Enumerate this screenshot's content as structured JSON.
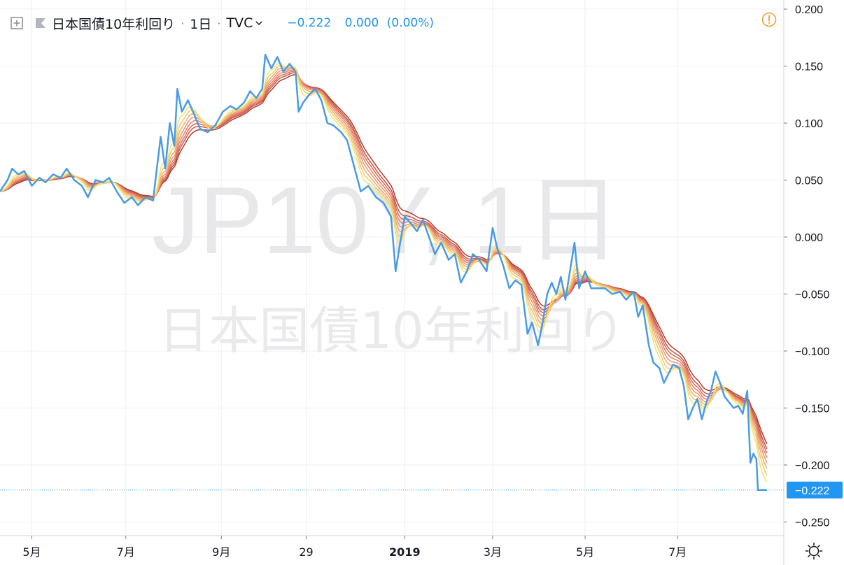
{
  "legend": {
    "title": "日本国債10年利回り",
    "interval": "1日",
    "exchange": "TVC",
    "last": "−0.222",
    "change": "0.000",
    "change_pct": "(0.00%)"
  },
  "watermark": {
    "symbol": "JP10Y, 1日",
    "name": "日本国債10年利回り"
  },
  "colors": {
    "price_line": "#4a9be3",
    "price_label_bg": "#2196f3",
    "ribbon": [
      "#f3e36a",
      "#f2c96c",
      "#efad6e",
      "#ec9670",
      "#e57f69",
      "#da6a5d",
      "#c95548",
      "#ad3f30"
    ]
  },
  "chart_data": {
    "type": "line",
    "title": "日本国債10年利回り",
    "subtitle": "1日 · TVC",
    "ylim": [
      -0.262,
      0.208
    ],
    "y_ticks": [
      0.2,
      0.15,
      0.1,
      0.05,
      0.0,
      -0.05,
      -0.1,
      -0.15,
      -0.2,
      -0.25
    ],
    "y_tick_labels": [
      "0.200",
      "0.150",
      "0.100",
      "0.050",
      "0.000",
      "−0.050",
      "−0.100",
      "−0.150",
      "−0.200",
      "−0.250"
    ],
    "x_ticks": [
      {
        "label": "5月",
        "date": "2018-05-01"
      },
      {
        "label": "7月",
        "date": "2018-07-02"
      },
      {
        "label": "9月",
        "date": "2018-09-03"
      },
      {
        "label": "29",
        "date": "2018-10-29"
      },
      {
        "label": "2019",
        "date": "2019-01-02"
      },
      {
        "label": "3月",
        "date": "2019-03-01"
      },
      {
        "label": "5月",
        "date": "2019-05-01"
      },
      {
        "label": "7月",
        "date": "2019-07-01"
      }
    ],
    "x_range": [
      "2018-04-10",
      "2019-08-29"
    ],
    "grid": true,
    "last_value_label": "−0.222",
    "last_value": -0.222,
    "series": [
      {
        "type": "line",
        "points": [
          [
            "2018-04-10",
            0.04
          ],
          [
            "2018-04-15",
            0.05
          ],
          [
            "2018-04-18",
            0.06
          ],
          [
            "2018-04-22",
            0.055
          ],
          [
            "2018-04-26",
            0.058
          ],
          [
            "2018-05-01",
            0.045
          ],
          [
            "2018-05-06",
            0.052
          ],
          [
            "2018-05-10",
            0.048
          ],
          [
            "2018-05-15",
            0.055
          ],
          [
            "2018-05-20",
            0.052
          ],
          [
            "2018-05-24",
            0.06
          ],
          [
            "2018-05-29",
            0.05
          ],
          [
            "2018-06-03",
            0.045
          ],
          [
            "2018-06-07",
            0.035
          ],
          [
            "2018-06-12",
            0.05
          ],
          [
            "2018-06-17",
            0.048
          ],
          [
            "2018-06-21",
            0.052
          ],
          [
            "2018-06-26",
            0.04
          ],
          [
            "2018-07-01",
            0.03
          ],
          [
            "2018-07-06",
            0.035
          ],
          [
            "2018-07-10",
            0.028
          ],
          [
            "2018-07-15",
            0.035
          ],
          [
            "2018-07-20",
            0.032
          ],
          [
            "2018-07-22",
            0.055
          ],
          [
            "2018-07-25",
            0.088
          ],
          [
            "2018-07-28",
            0.06
          ],
          [
            "2018-07-31",
            0.1
          ],
          [
            "2018-08-03",
            0.08
          ],
          [
            "2018-08-05",
            0.13
          ],
          [
            "2018-08-08",
            0.11
          ],
          [
            "2018-08-12",
            0.12
          ],
          [
            "2018-08-16",
            0.108
          ],
          [
            "2018-08-20",
            0.095
          ],
          [
            "2018-08-25",
            0.092
          ],
          [
            "2018-08-30",
            0.098
          ],
          [
            "2018-09-04",
            0.11
          ],
          [
            "2018-09-09",
            0.115
          ],
          [
            "2018-09-13",
            0.112
          ],
          [
            "2018-09-18",
            0.118
          ],
          [
            "2018-09-22",
            0.128
          ],
          [
            "2018-09-26",
            0.122
          ],
          [
            "2018-09-30",
            0.13
          ],
          [
            "2018-10-02",
            0.16
          ],
          [
            "2018-10-06",
            0.148
          ],
          [
            "2018-10-10",
            0.158
          ],
          [
            "2018-10-14",
            0.145
          ],
          [
            "2018-10-18",
            0.152
          ],
          [
            "2018-10-22",
            0.145
          ],
          [
            "2018-10-24",
            0.11
          ],
          [
            "2018-10-27",
            0.118
          ],
          [
            "2018-10-31",
            0.125
          ],
          [
            "2018-11-04",
            0.13
          ],
          [
            "2018-11-08",
            0.12
          ],
          [
            "2018-11-12",
            0.1
          ],
          [
            "2018-11-16",
            0.098
          ],
          [
            "2018-11-21",
            0.092
          ],
          [
            "2018-11-25",
            0.085
          ],
          [
            "2018-11-30",
            0.06
          ],
          [
            "2018-12-04",
            0.04
          ],
          [
            "2018-12-09",
            0.045
          ],
          [
            "2018-12-14",
            0.035
          ],
          [
            "2018-12-19",
            0.03
          ],
          [
            "2018-12-24",
            0.018
          ],
          [
            "2018-12-27",
            -0.03
          ],
          [
            "2018-12-30",
            -0.005
          ],
          [
            "2019-01-02",
            0.018
          ],
          [
            "2019-01-06",
            0.012
          ],
          [
            "2019-01-10",
            0.005
          ],
          [
            "2019-01-14",
            0.015
          ],
          [
            "2019-01-18",
            0.0
          ],
          [
            "2019-01-22",
            -0.015
          ],
          [
            "2019-01-26",
            -0.005
          ],
          [
            "2019-01-31",
            -0.02
          ],
          [
            "2019-02-04",
            -0.015
          ],
          [
            "2019-02-08",
            -0.04
          ],
          [
            "2019-02-12",
            -0.03
          ],
          [
            "2019-02-16",
            -0.015
          ],
          [
            "2019-02-20",
            -0.02
          ],
          [
            "2019-02-25",
            -0.03
          ],
          [
            "2019-03-01",
            0.008
          ],
          [
            "2019-03-04",
            -0.01
          ],
          [
            "2019-03-08",
            -0.025
          ],
          [
            "2019-03-12",
            -0.045
          ],
          [
            "2019-03-16",
            -0.038
          ],
          [
            "2019-03-20",
            -0.042
          ],
          [
            "2019-03-24",
            -0.085
          ],
          [
            "2019-03-27",
            -0.075
          ],
          [
            "2019-03-31",
            -0.095
          ],
          [
            "2019-04-03",
            -0.075
          ],
          [
            "2019-04-06",
            -0.05
          ],
          [
            "2019-04-09",
            -0.04
          ],
          [
            "2019-04-12",
            -0.05
          ],
          [
            "2019-04-15",
            -0.035
          ],
          [
            "2019-04-18",
            -0.055
          ],
          [
            "2019-04-21",
            -0.03
          ],
          [
            "2019-04-24",
            -0.005
          ],
          [
            "2019-04-27",
            -0.045
          ],
          [
            "2019-05-01",
            -0.03
          ],
          [
            "2019-05-05",
            -0.045
          ],
          [
            "2019-05-09",
            -0.045
          ],
          [
            "2019-05-14",
            -0.045
          ],
          [
            "2019-05-19",
            -0.05
          ],
          [
            "2019-05-24",
            -0.048
          ],
          [
            "2019-05-28",
            -0.055
          ],
          [
            "2019-06-02",
            -0.048
          ],
          [
            "2019-06-05",
            -0.07
          ],
          [
            "2019-06-08",
            -0.06
          ],
          [
            "2019-06-12",
            -0.095
          ],
          [
            "2019-06-15",
            -0.11
          ],
          [
            "2019-06-19",
            -0.115
          ],
          [
            "2019-06-22",
            -0.128
          ],
          [
            "2019-06-25",
            -0.12
          ],
          [
            "2019-06-28",
            -0.112
          ],
          [
            "2019-07-02",
            -0.115
          ],
          [
            "2019-07-05",
            -0.13
          ],
          [
            "2019-07-08",
            -0.16
          ],
          [
            "2019-07-11",
            -0.15
          ],
          [
            "2019-07-14",
            -0.142
          ],
          [
            "2019-07-17",
            -0.16
          ],
          [
            "2019-07-20",
            -0.145
          ],
          [
            "2019-07-23",
            -0.135
          ],
          [
            "2019-07-26",
            -0.118
          ],
          [
            "2019-07-29",
            -0.128
          ],
          [
            "2019-08-01",
            -0.14
          ],
          [
            "2019-08-04",
            -0.145
          ],
          [
            "2019-08-07",
            -0.15
          ],
          [
            "2019-08-10",
            -0.148
          ],
          [
            "2019-08-13",
            -0.155
          ],
          [
            "2019-08-16",
            -0.135
          ],
          [
            "2019-08-18",
            -0.198
          ],
          [
            "2019-08-20",
            -0.19
          ],
          [
            "2019-08-22",
            -0.195
          ],
          [
            "2019-08-23",
            -0.222
          ],
          [
            "2019-08-29",
            -0.222
          ]
        ]
      }
    ],
    "ribbon_ma_periods": [
      8,
      11,
      14,
      17,
      20,
      23,
      26,
      30
    ]
  }
}
